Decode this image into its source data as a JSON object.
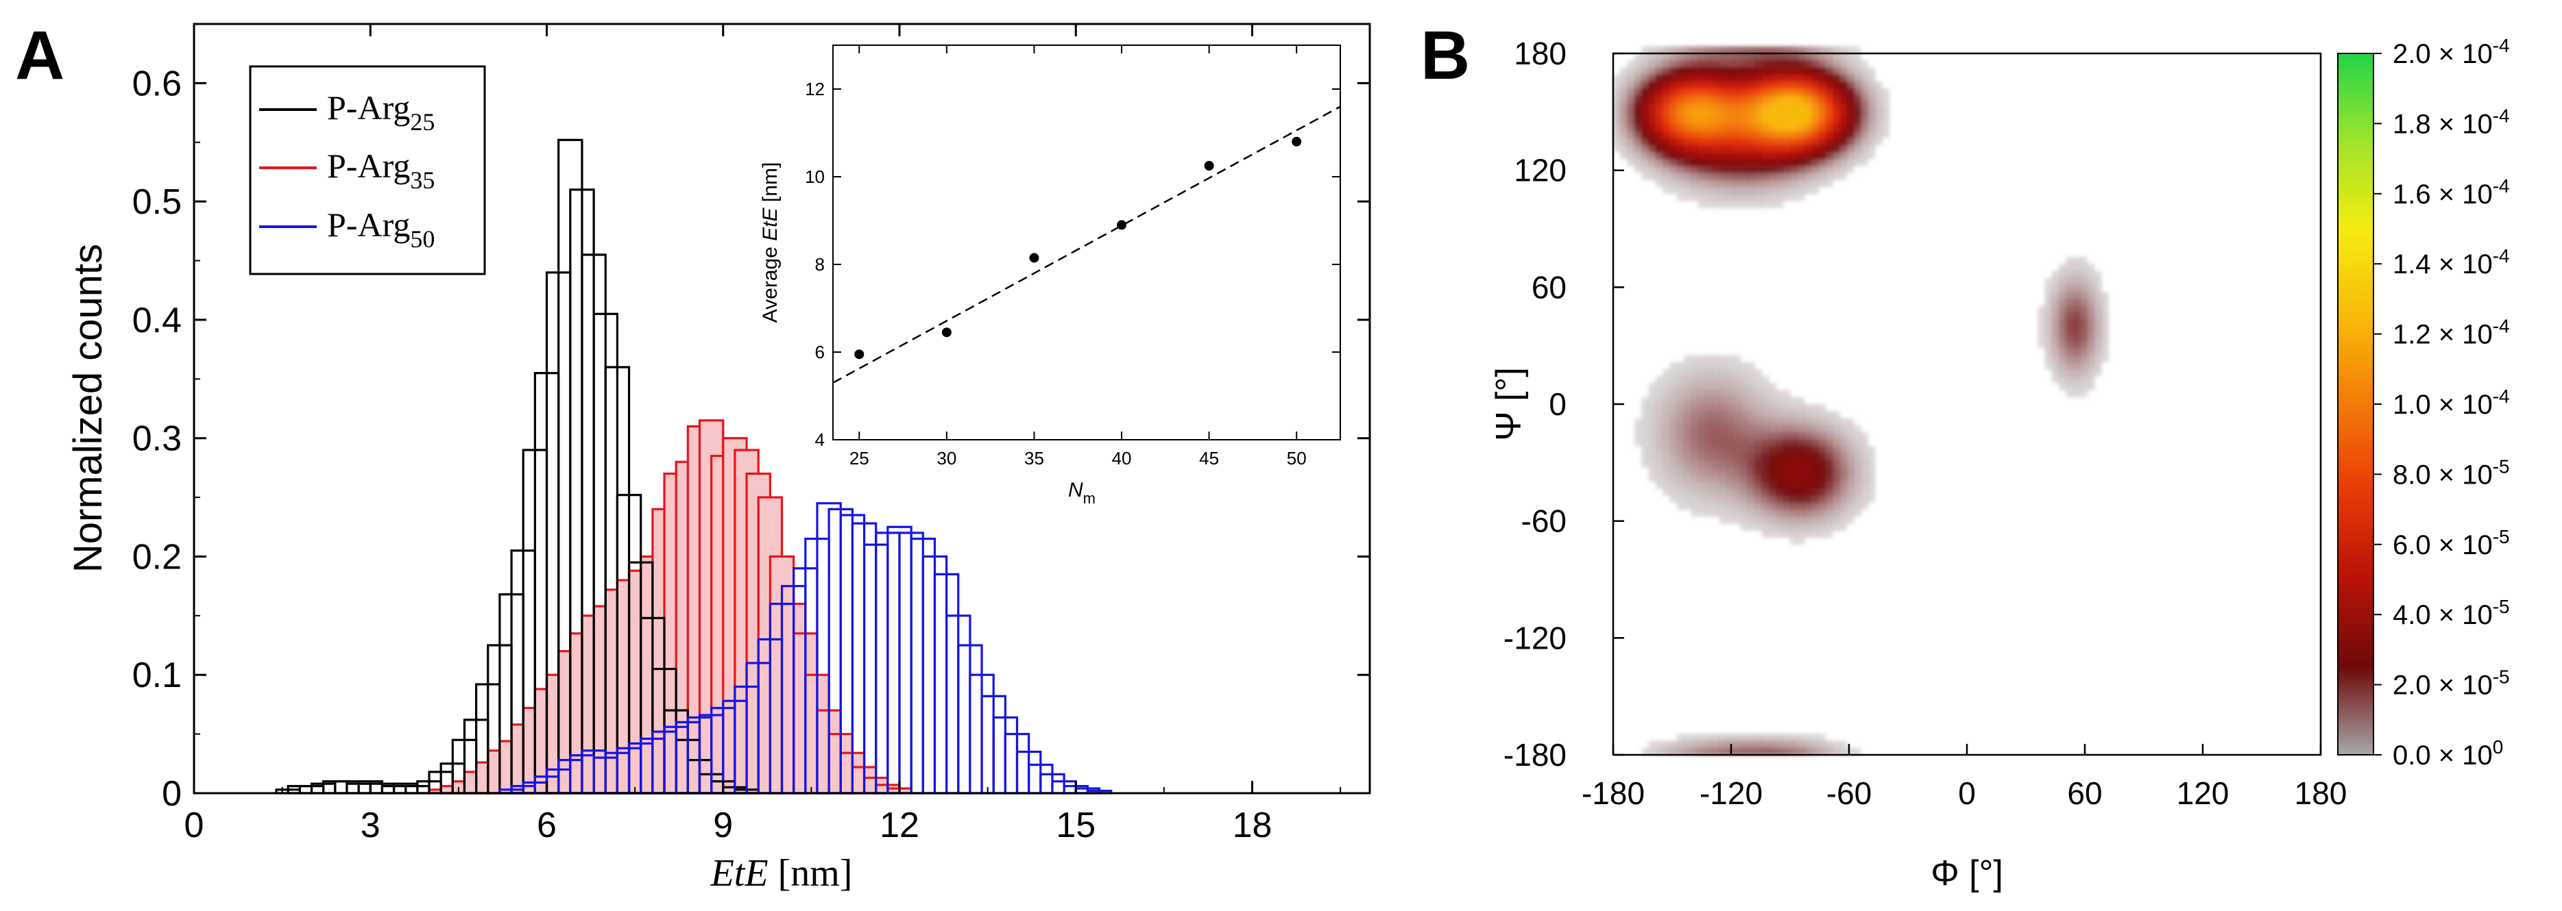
{
  "chart_data": [
    {
      "panel": "A",
      "type": "bar",
      "subtype": "step-histogram",
      "xlabel_italic": "EtE",
      "xlabel_unit": " [nm]",
      "ylabel": "Normalized counts",
      "xlim": [
        0,
        20
      ],
      "ylim": [
        0,
        0.65
      ],
      "x_ticks": [
        "0",
        "3",
        "6",
        "9",
        "12",
        "15",
        "18"
      ],
      "y_ticks": [
        "0",
        "0.1",
        "0.2",
        "0.3",
        "0.4",
        "0.5",
        "0.6"
      ],
      "bin_width": 0.4,
      "legend": {
        "position": "top-left",
        "prefix": "P-Arg",
        "entries": [
          {
            "sub": "25",
            "color": "#000000"
          },
          {
            "sub": "35",
            "color": "#e8141a"
          },
          {
            "sub": "50",
            "color": "#1414e6"
          }
        ]
      },
      "series": [
        {
          "name": "P-Arg25",
          "color": "#000000",
          "fill": false,
          "bins": [
            [
              1.4,
              0.003
            ],
            [
              1.6,
              0.006
            ],
            [
              1.8,
              0.006
            ],
            [
              2.0,
              0.008
            ],
            [
              2.2,
              0.01
            ],
            [
              2.4,
              0.01
            ],
            [
              2.6,
              0.008
            ],
            [
              2.8,
              0.01
            ],
            [
              3.0,
              0.008
            ],
            [
              3.2,
              0.006
            ],
            [
              3.4,
              0.008
            ],
            [
              3.6,
              0.006
            ],
            [
              3.8,
              0.01
            ],
            [
              4.0,
              0.018
            ],
            [
              4.2,
              0.025
            ],
            [
              4.4,
              0.045
            ],
            [
              4.6,
              0.062
            ],
            [
              4.8,
              0.092
            ],
            [
              5.0,
              0.125
            ],
            [
              5.2,
              0.168
            ],
            [
              5.4,
              0.205
            ],
            [
              5.6,
              0.29
            ],
            [
              5.8,
              0.355
            ],
            [
              6.0,
              0.44
            ],
            [
              6.2,
              0.552
            ],
            [
              6.4,
              0.51
            ],
            [
              6.6,
              0.455
            ],
            [
              6.8,
              0.405
            ],
            [
              7.0,
              0.36
            ],
            [
              7.2,
              0.252
            ],
            [
              7.4,
              0.195
            ],
            [
              7.6,
              0.148
            ],
            [
              7.8,
              0.105
            ],
            [
              8.0,
              0.07
            ],
            [
              8.2,
              0.045
            ],
            [
              8.4,
              0.028
            ],
            [
              8.6,
              0.016
            ],
            [
              8.8,
              0.01
            ],
            [
              9.0,
              0.005
            ],
            [
              9.2,
              0.003
            ]
          ]
        },
        {
          "name": "P-Arg35",
          "color": "#e8141a",
          "fill": true,
          "fill_color": "#f7c6c8",
          "bins": [
            [
              4.0,
              0.003
            ],
            [
              4.2,
              0.006
            ],
            [
              4.4,
              0.01
            ],
            [
              4.6,
              0.018
            ],
            [
              4.8,
              0.026
            ],
            [
              5.0,
              0.036
            ],
            [
              5.2,
              0.044
            ],
            [
              5.4,
              0.058
            ],
            [
              5.6,
              0.072
            ],
            [
              5.8,
              0.088
            ],
            [
              6.0,
              0.1
            ],
            [
              6.2,
              0.12
            ],
            [
              6.4,
              0.135
            ],
            [
              6.6,
              0.15
            ],
            [
              6.8,
              0.158
            ],
            [
              7.0,
              0.172
            ],
            [
              7.2,
              0.18
            ],
            [
              7.4,
              0.188
            ],
            [
              7.6,
              0.2
            ],
            [
              7.8,
              0.24
            ],
            [
              8.0,
              0.27
            ],
            [
              8.2,
              0.28
            ],
            [
              8.4,
              0.31
            ],
            [
              8.6,
              0.315
            ],
            [
              8.8,
              0.285
            ],
            [
              9.0,
              0.3
            ],
            [
              9.2,
              0.29
            ],
            [
              9.4,
              0.27
            ],
            [
              9.6,
              0.25
            ],
            [
              9.8,
              0.2
            ],
            [
              10.0,
              0.16
            ],
            [
              10.2,
              0.135
            ],
            [
              10.4,
              0.1
            ],
            [
              10.6,
              0.07
            ],
            [
              10.8,
              0.05
            ],
            [
              11.0,
              0.034
            ],
            [
              11.2,
              0.022
            ],
            [
              11.4,
              0.013
            ],
            [
              11.6,
              0.007
            ],
            [
              11.8,
              0.004
            ]
          ]
        },
        {
          "name": "P-Arg50",
          "color": "#1414e6",
          "fill": false,
          "bins": [
            [
              5.2,
              0.003
            ],
            [
              5.4,
              0.006
            ],
            [
              5.6,
              0.009
            ],
            [
              5.8,
              0.014
            ],
            [
              6.0,
              0.02
            ],
            [
              6.2,
              0.028
            ],
            [
              6.4,
              0.032
            ],
            [
              6.6,
              0.036
            ],
            [
              6.8,
              0.03
            ],
            [
              7.0,
              0.034
            ],
            [
              7.2,
              0.038
            ],
            [
              7.4,
              0.042
            ],
            [
              7.6,
              0.046
            ],
            [
              7.8,
              0.052
            ],
            [
              8.0,
              0.056
            ],
            [
              8.2,
              0.06
            ],
            [
              8.4,
              0.064
            ],
            [
              8.6,
              0.066
            ],
            [
              8.8,
              0.072
            ],
            [
              9.0,
              0.078
            ],
            [
              9.2,
              0.09
            ],
            [
              9.4,
              0.11
            ],
            [
              9.6,
              0.13
            ],
            [
              9.8,
              0.16
            ],
            [
              10.0,
              0.175
            ],
            [
              10.2,
              0.19
            ],
            [
              10.4,
              0.215
            ],
            [
              10.6,
              0.245
            ],
            [
              10.8,
              0.24
            ],
            [
              11.0,
              0.235
            ],
            [
              11.2,
              0.228
            ],
            [
              11.4,
              0.21
            ],
            [
              11.6,
              0.22
            ],
            [
              11.8,
              0.225
            ],
            [
              12.0,
              0.22
            ],
            [
              12.2,
              0.215
            ],
            [
              12.4,
              0.2
            ],
            [
              12.6,
              0.185
            ],
            [
              12.8,
              0.15
            ],
            [
              13.0,
              0.125
            ],
            [
              13.2,
              0.1
            ],
            [
              13.4,
              0.082
            ],
            [
              13.6,
              0.064
            ],
            [
              13.8,
              0.05
            ],
            [
              14.0,
              0.035
            ],
            [
              14.2,
              0.024
            ],
            [
              14.4,
              0.016
            ],
            [
              14.6,
              0.01
            ],
            [
              14.8,
              0.006
            ],
            [
              15.0,
              0.004
            ],
            [
              15.2,
              0.002
            ]
          ]
        }
      ],
      "inset": {
        "type": "scatter",
        "xlabel": "N",
        "xlabel_sub": "m",
        "ylabel_prefix": "Average ",
        "ylabel_italic": "EtE",
        "ylabel_unit": " [nm]",
        "xlim": [
          23.5,
          52.5
        ],
        "ylim": [
          4,
          13
        ],
        "x_ticks": [
          "25",
          "30",
          "35",
          "40",
          "45",
          "50"
        ],
        "y_ticks": [
          "4",
          "6",
          "8",
          "10",
          "12"
        ],
        "points": [
          [
            25,
            5.95
          ],
          [
            30,
            6.45
          ],
          [
            35,
            8.15
          ],
          [
            40,
            8.9
          ],
          [
            45,
            10.25
          ],
          [
            50,
            10.8
          ]
        ],
        "fit_line": {
          "style": "dashed",
          "x": [
            23.5,
            52.5
          ],
          "y": [
            5.3,
            11.6
          ]
        }
      }
    },
    {
      "panel": "B",
      "type": "heatmap",
      "xlabel": "Φ [°]",
      "ylabel": "Ψ [°]",
      "xlim": [
        -180,
        180
      ],
      "ylim": [
        -180,
        180
      ],
      "x_ticks": [
        "-180",
        "-120",
        "-60",
        "0",
        "60",
        "120",
        "180"
      ],
      "y_ticks": [
        "180",
        "120",
        "60",
        "0",
        "-60",
        "-120",
        "-180"
      ],
      "regions": [
        {
          "phi": -88,
          "psi": 150,
          "sphi": 18,
          "spsi": 13,
          "weight": 1.0
        },
        {
          "phi": -140,
          "psi": 150,
          "sphi": 17,
          "spsi": 13,
          "weight": 0.75
        },
        {
          "phi": -115,
          "psi": 140,
          "sphi": 24,
          "spsi": 18,
          "weight": 0.3
        },
        {
          "phi": -85,
          "psi": -35,
          "sphi": 18,
          "spsi": 16,
          "weight": 0.28
        },
        {
          "phi": -130,
          "psi": -15,
          "sphi": 20,
          "spsi": 22,
          "weight": 0.15
        },
        {
          "phi": 55,
          "psi": 40,
          "sphi": 9,
          "spsi": 18,
          "weight": 0.18
        },
        {
          "phi": -110,
          "psi": -178,
          "sphi": 28,
          "spsi": 5,
          "weight": 0.1
        }
      ],
      "colorbar": {
        "colors": [
          "#a8a8a8",
          "#6e0a0a",
          "#b81208",
          "#e83a08",
          "#f47a08",
          "#f8ba08",
          "#f4ec10",
          "#9fe32a",
          "#22d448"
        ],
        "labels": [
          {
            "mantissa": "2.0",
            "exp": "-4"
          },
          {
            "mantissa": "1.8",
            "exp": "-4"
          },
          {
            "mantissa": "1.6",
            "exp": "-4"
          },
          {
            "mantissa": "1.4",
            "exp": "-4"
          },
          {
            "mantissa": "1.2",
            "exp": "-4"
          },
          {
            "mantissa": "1.0",
            "exp": "-4"
          },
          {
            "mantissa": "8.0",
            "exp": "-5"
          },
          {
            "mantissa": "6.0",
            "exp": "-5"
          },
          {
            "mantissa": "4.0",
            "exp": "-5"
          },
          {
            "mantissa": "2.0",
            "exp": "-5"
          },
          {
            "mantissa": "0.0",
            "exp": "0"
          }
        ],
        "times": "× 10"
      }
    }
  ],
  "panel_labels": [
    "A",
    "B"
  ]
}
